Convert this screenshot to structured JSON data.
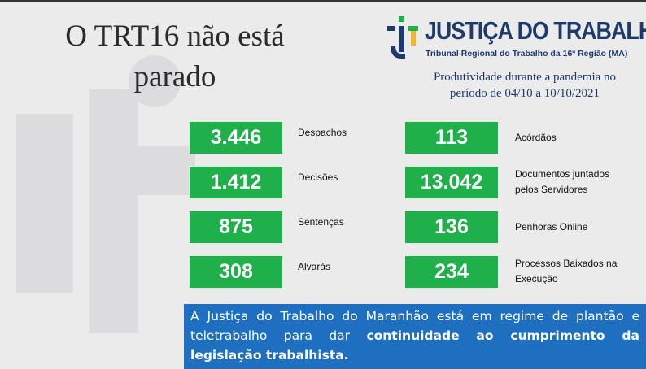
{
  "header": {
    "title_lines": [
      "O TRT16 não está",
      "parado"
    ],
    "brand": "JUSTIÇA DO TRABALHO",
    "brand_subtitle": "Tribunal Regional do Trabalho da 16ª Região (MA)",
    "subtitle_lines": [
      "Produtividade durante a pandemia no",
      "período de 04/10 a 10/10/2021"
    ]
  },
  "stats": [
    {
      "value": "3.446",
      "label_lines": [
        "Despachos"
      ]
    },
    {
      "value": "1.412",
      "label_lines": [
        "Decisões"
      ]
    },
    {
      "value": "875",
      "label_lines": [
        "Sentenças"
      ]
    },
    {
      "value": "308",
      "label_lines": [
        "Alvarás"
      ]
    },
    {
      "value": "113",
      "label_lines": [
        "Acórdãos"
      ]
    },
    {
      "value": "13.042",
      "label_lines": [
        "Documentos juntados",
        "pelos Servidores"
      ]
    },
    {
      "value": "136",
      "label_lines": [
        "Penhoras Online"
      ]
    },
    {
      "value": "234",
      "label_lines": [
        "Processos Baixados na",
        "Execução"
      ]
    }
  ],
  "footer": {
    "text": "A Justiça do Trabalho do Maranhão está em regime de plantão e teletrabalho para dar",
    "bold": "continuidade ao cumprimento da legislação trabalhista."
  }
}
